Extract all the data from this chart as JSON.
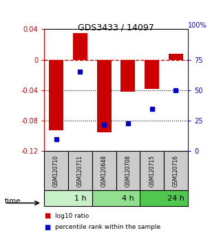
{
  "title": "GDS3433 / 14097",
  "samples": [
    "GSM120710",
    "GSM120711",
    "GSM120648",
    "GSM120708",
    "GSM120715",
    "GSM120716"
  ],
  "log10_ratio": [
    -0.092,
    0.035,
    -0.095,
    -0.042,
    -0.038,
    0.008
  ],
  "percentile_rank": [
    10,
    65,
    22,
    23,
    35,
    50
  ],
  "time_groups": [
    {
      "label": "1 h",
      "start": 0,
      "end": 2,
      "color": "#c8f0c8"
    },
    {
      "label": "4 h",
      "start": 2,
      "end": 4,
      "color": "#90e090"
    },
    {
      "label": "24 h",
      "start": 4,
      "end": 6,
      "color": "#50c850"
    }
  ],
  "bar_color": "#cc0000",
  "dot_color": "#0000cc",
  "ylim_left": [
    -0.12,
    0.04
  ],
  "ylim_right": [
    0,
    100
  ],
  "yticks_left": [
    0.04,
    0,
    -0.04,
    -0.08,
    -0.12
  ],
  "yticks_right": [
    75,
    50,
    25,
    0
  ],
  "ytick_labels_left": [
    "0.04",
    "0",
    "-0.04",
    "-0.08",
    "-0.12"
  ],
  "ytick_labels_right": [
    "75",
    "50",
    "25",
    "0"
  ],
  "right_top_label": "100%",
  "hlines": [
    -0.04,
    -0.08
  ],
  "legend_log10": "log10 ratio",
  "legend_pct": "percentile rank within the sample",
  "bg_color": "#ffffff",
  "sample_box_color": "#cccccc",
  "bar_width": 0.6
}
